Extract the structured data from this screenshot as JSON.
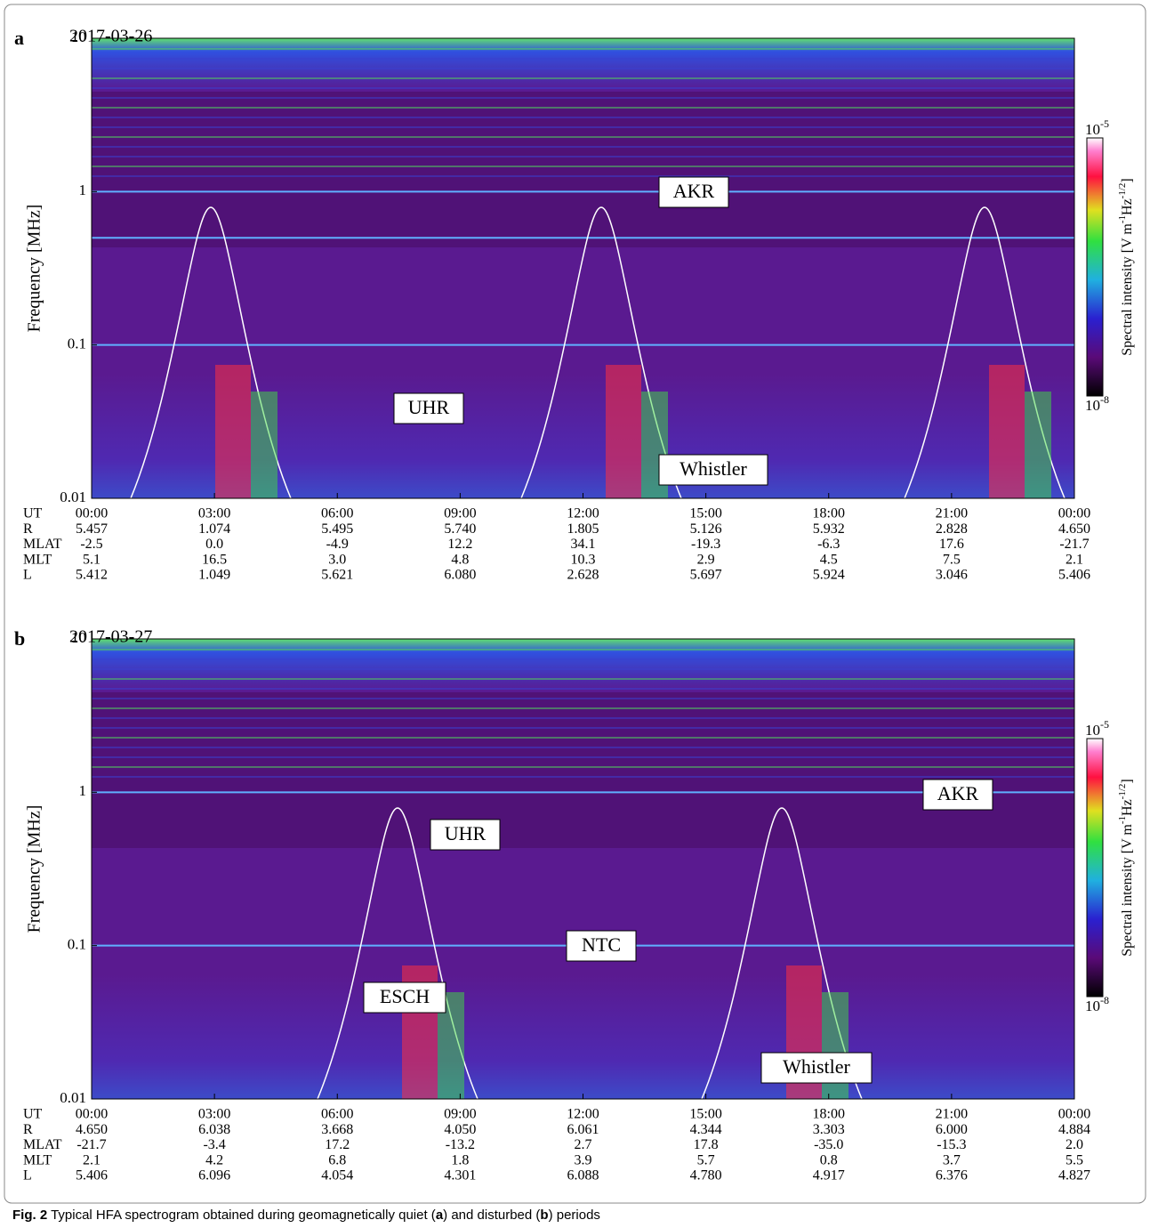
{
  "panels": [
    {
      "label": "a",
      "date": "2017-03-26",
      "ylabel": "Frequency [MHz]",
      "ylim": [
        0.01,
        10
      ],
      "yticks": [
        10,
        1,
        0.1,
        0.01
      ],
      "log": true,
      "colorbar": {
        "title_parts": [
          "Spectral intensity [V m",
          "-1",
          "Hz",
          "-1/2",
          "]"
        ],
        "top": {
          "base": "10",
          "exp": "-5"
        },
        "bottom": {
          "base": "10",
          "exp": "-8"
        }
      },
      "annotations": [
        "AKR",
        "UHR",
        "Whistler"
      ],
      "ephemeris": {
        "rows": [
          "UT",
          "R",
          "MLAT",
          "MLT",
          "L"
        ],
        "values": [
          [
            "00:00",
            "03:00",
            "06:00",
            "09:00",
            "12:00",
            "15:00",
            "18:00",
            "21:00",
            "00:00"
          ],
          [
            "5.457",
            "1.074",
            "5.495",
            "5.740",
            "1.805",
            "5.126",
            "5.932",
            "2.828",
            "4.650"
          ],
          [
            "-2.5",
            "0.0",
            "-4.9",
            "12.2",
            "34.1",
            "-19.3",
            "-6.3",
            "17.6",
            "-21.7"
          ],
          [
            "5.1",
            "16.5",
            "3.0",
            "4.8",
            "10.3",
            "2.9",
            "4.5",
            "7.5",
            "2.1"
          ],
          [
            "5.412",
            "1.049",
            "5.621",
            "6.080",
            "2.628",
            "5.697",
            "5.924",
            "3.046",
            "5.406"
          ]
        ]
      }
    },
    {
      "label": "b",
      "date": "2017-03-27",
      "ylabel": "Frequency [MHz]",
      "ylim": [
        0.01,
        10
      ],
      "yticks": [
        10,
        1,
        0.1,
        0.01
      ],
      "log": true,
      "colorbar": {
        "title_parts": [
          "Spectral intensity [V m",
          "-1",
          "Hz",
          "-1/2",
          "]"
        ],
        "top": {
          "base": "10",
          "exp": "-5"
        },
        "bottom": {
          "base": "10",
          "exp": "-8"
        }
      },
      "annotations": [
        "AKR",
        "UHR",
        "NTC",
        "ESCH",
        "Whistler"
      ],
      "ephemeris": {
        "rows": [
          "UT",
          "R",
          "MLAT",
          "MLT",
          "L"
        ],
        "values": [
          [
            "00:00",
            "03:00",
            "06:00",
            "09:00",
            "12:00",
            "15:00",
            "18:00",
            "21:00",
            "00:00"
          ],
          [
            "4.650",
            "6.038",
            "3.668",
            "4.050",
            "6.061",
            "4.344",
            "3.303",
            "6.000",
            "4.884"
          ],
          [
            "-21.7",
            "-3.4",
            "17.2",
            "-13.2",
            "2.7",
            "17.8",
            "-35.0",
            "-15.3",
            "2.0"
          ],
          [
            "2.1",
            "4.2",
            "6.8",
            "1.8",
            "3.9",
            "5.7",
            "0.8",
            "3.7",
            "5.5"
          ],
          [
            "5.406",
            "6.096",
            "4.054",
            "4.301",
            "6.088",
            "4.780",
            "4.917",
            "6.376",
            "4.827"
          ]
        ]
      }
    }
  ],
  "caption": {
    "parts": [
      "Fig. 2",
      " Typical HFA spectrogram obtained during geomagnetically quiet (",
      "a",
      ") and disturbed (",
      "b",
      ") periods"
    ]
  }
}
